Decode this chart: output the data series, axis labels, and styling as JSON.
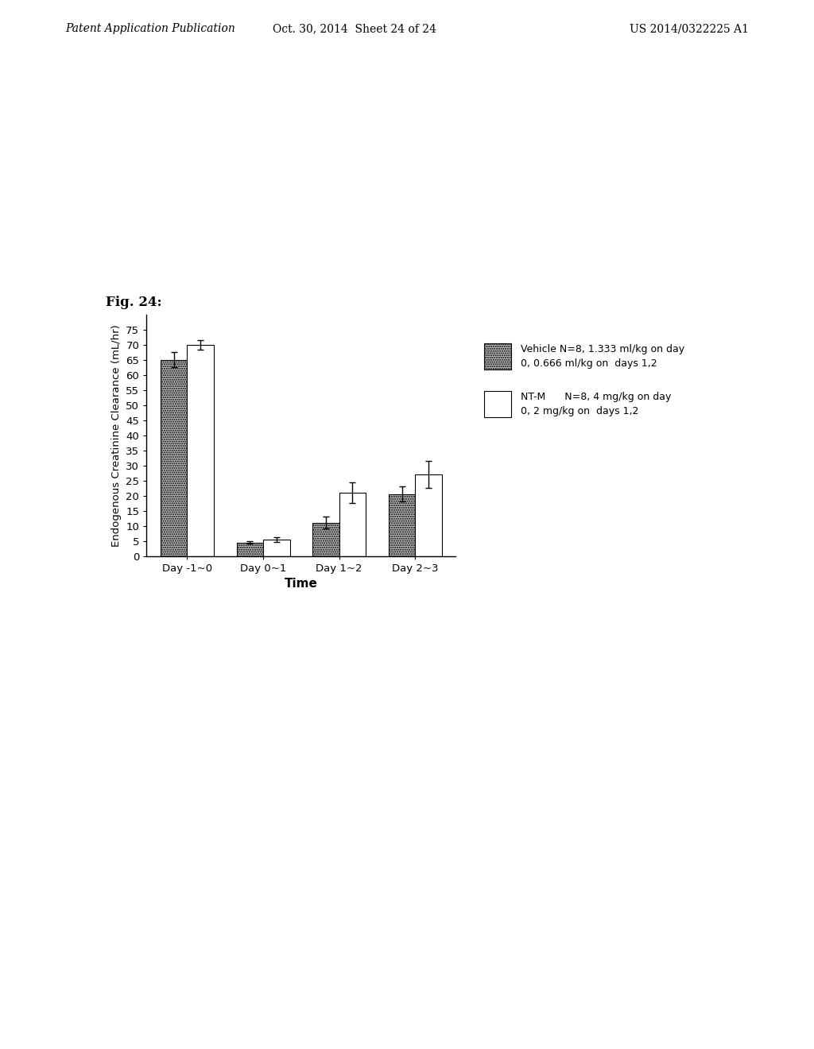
{
  "categories": [
    "Day -1~0",
    "Day 0~1",
    "Day 1~2",
    "Day 2~3"
  ],
  "vehicle_values": [
    65.0,
    4.5,
    11.0,
    20.5
  ],
  "vehicle_errors": [
    2.5,
    0.5,
    2.0,
    2.5
  ],
  "ntm_values": [
    70.0,
    5.5,
    21.0,
    27.0
  ],
  "ntm_errors": [
    1.5,
    0.8,
    3.5,
    4.5
  ],
  "ylabel": "Endogenous Creatinine Clearance (mL/hr)",
  "xlabel": "Time",
  "ylim": [
    0,
    80
  ],
  "yticks": [
    0,
    5,
    10,
    15,
    20,
    25,
    30,
    35,
    40,
    45,
    50,
    55,
    60,
    65,
    70,
    75
  ],
  "vehicle_label_line1": "Vehicle N=8, 1.333 ml/kg on day",
  "vehicle_label_line2": "0, 0.666 ml/kg on  days 1,2",
  "ntm_label_line1": "NT-M      N=8, 4 mg/kg on day",
  "ntm_label_line2": "0, 2 mg/kg on  days 1,2",
  "bar_width": 0.35,
  "fig_title": "Fig. 24:",
  "header_left": "Patent Application Publication",
  "header_center": "Oct. 30, 2014  Sheet 24 of 24",
  "header_right": "US 2014/0322225 A1",
  "background_color": "#ffffff"
}
